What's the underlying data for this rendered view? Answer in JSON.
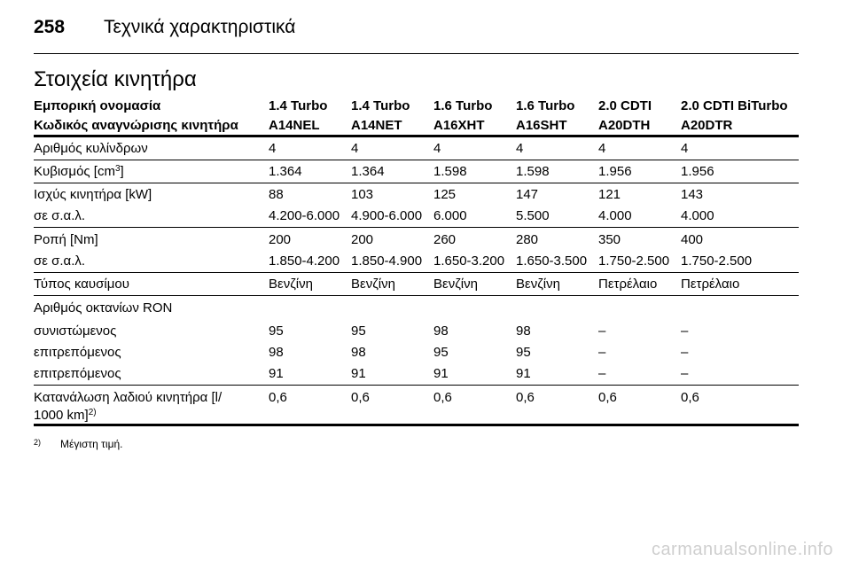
{
  "header": {
    "page_number": "258",
    "title": "Τεχνικά χαρακτηριστικά"
  },
  "section_title": "Στοιχεία κινητήρα",
  "table": {
    "head_row1": [
      "Εμπορική ονομασία",
      "1.4 Turbo",
      "1.4 Turbo",
      "1.6 Turbo",
      "1.6 Turbo",
      "2.0 CDTI",
      "2.0 CDTI BiTurbo"
    ],
    "head_row2": [
      "Κωδικός αναγνώρισης κινητήρα",
      "A14NEL",
      "A14NET",
      "A16XHT",
      "A16SHT",
      "A20DTH",
      "A20DTR"
    ],
    "cylinders": [
      "Αριθμός κυλίνδρων",
      "4",
      "4",
      "4",
      "4",
      "4",
      "4"
    ],
    "displacement_label_pre": "Κυβισμός [cm",
    "displacement_label_sup": "3",
    "displacement_label_post": "]",
    "displacement": [
      "1.364",
      "1.364",
      "1.598",
      "1.598",
      "1.956",
      "1.956"
    ],
    "power": [
      "Ισχύς κινητήρα [kW]",
      "88",
      "103",
      "125",
      "147",
      "121",
      "143"
    ],
    "power_rpm": [
      "σε σ.α.λ.",
      "4.200-6.000",
      "4.900-6.000",
      "6.000",
      "5.500",
      "4.000",
      "4.000"
    ],
    "torque": [
      "Ροπή [Nm]",
      "200",
      "200",
      "260",
      "280",
      "350",
      "400"
    ],
    "torque_rpm": [
      "σε σ.α.λ.",
      "1.850-4.200",
      "1.850-4.900",
      "1.650-3.200",
      "1.650-3.500",
      "1.750-2.500",
      "1.750-2.500"
    ],
    "fuel": [
      "Τύπος καυσίμου",
      "Βενζίνη",
      "Βενζίνη",
      "Βενζίνη",
      "Βενζίνη",
      "Πετρέλαιο",
      "Πετρέλαιο"
    ],
    "ron_label": "Αριθμός οκτανίων RON",
    "ron_recommended": [
      "συνιστώμενος",
      "95",
      "95",
      "98",
      "98",
      "–",
      "–"
    ],
    "ron_permitted1": [
      "επιτρεπόμενος",
      "98",
      "98",
      "95",
      "95",
      "–",
      "–"
    ],
    "ron_permitted2": [
      "επιτρεπόμενος",
      "91",
      "91",
      "91",
      "91",
      "–",
      "–"
    ],
    "oil_label_line1": "Κατανάλωση λαδιού κινητήρα [l/",
    "oil_label_line2": "1000 km]",
    "oil_label_sup": "2)",
    "oil": [
      "0,6",
      "0,6",
      "0,6",
      "0,6",
      "0,6",
      "0,6"
    ]
  },
  "footnote": {
    "marker": "2)",
    "text": "Μέγιστη τιμή."
  },
  "watermark": "carmanualsonline.info"
}
